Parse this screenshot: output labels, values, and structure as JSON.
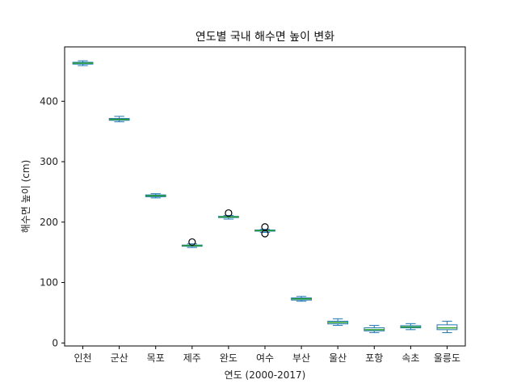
{
  "chart_data": {
    "type": "box",
    "title": "연도별 국내 해수면 높이 변화",
    "xlabel": "연도 (2000-2017)",
    "ylabel": "해수면 높이 (cm)",
    "ylim": [
      -5,
      490
    ],
    "yticks": [
      0,
      100,
      200,
      300,
      400
    ],
    "grid": false,
    "colors": {
      "box": "#1f77b4",
      "median": "#2ca02c",
      "whisker": "#1f77b4",
      "flier": "#000000"
    },
    "categories": [
      "인천",
      "군산",
      "목포",
      "제주",
      "완도",
      "여수",
      "부산",
      "울산",
      "포항",
      "속초",
      "울릉도"
    ],
    "boxes": [
      {
        "label": "인천",
        "whislo": 459,
        "q1": 461.5,
        "med": 463,
        "q3": 464.5,
        "whishi": 467,
        "fliers": []
      },
      {
        "label": "군산",
        "whislo": 366,
        "q1": 368.5,
        "med": 370,
        "q3": 371.5,
        "whishi": 375,
        "fliers": []
      },
      {
        "label": "목포",
        "whislo": 240,
        "q1": 242,
        "med": 243.5,
        "q3": 245,
        "whishi": 247,
        "fliers": []
      },
      {
        "label": "제주",
        "whislo": 158,
        "q1": 160,
        "med": 161,
        "q3": 162,
        "whishi": 164,
        "fliers": [
          167
        ]
      },
      {
        "label": "완도",
        "whislo": 205,
        "q1": 207.5,
        "med": 208.5,
        "q3": 209.5,
        "whishi": 211,
        "fliers": [
          215
        ]
      },
      {
        "label": "여수",
        "whislo": 183,
        "q1": 185,
        "med": 186,
        "q3": 187,
        "whishi": 188,
        "fliers": [
          192,
          181
        ]
      },
      {
        "label": "부산",
        "whislo": 69,
        "q1": 71,
        "med": 73,
        "q3": 74.5,
        "whishi": 77,
        "fliers": []
      },
      {
        "label": "울산",
        "whislo": 29,
        "q1": 31.5,
        "med": 34,
        "q3": 36,
        "whishi": 40,
        "fliers": []
      },
      {
        "label": "포항",
        "whislo": 17,
        "q1": 20,
        "med": 22,
        "q3": 25,
        "whishi": 29,
        "fliers": []
      },
      {
        "label": "속초",
        "whislo": 22,
        "q1": 25,
        "med": 26.5,
        "q3": 28.5,
        "whishi": 32,
        "fliers": []
      },
      {
        "label": "울릉도",
        "whislo": 17,
        "q1": 22,
        "med": 25,
        "q3": 30,
        "whishi": 36,
        "fliers": []
      }
    ]
  }
}
